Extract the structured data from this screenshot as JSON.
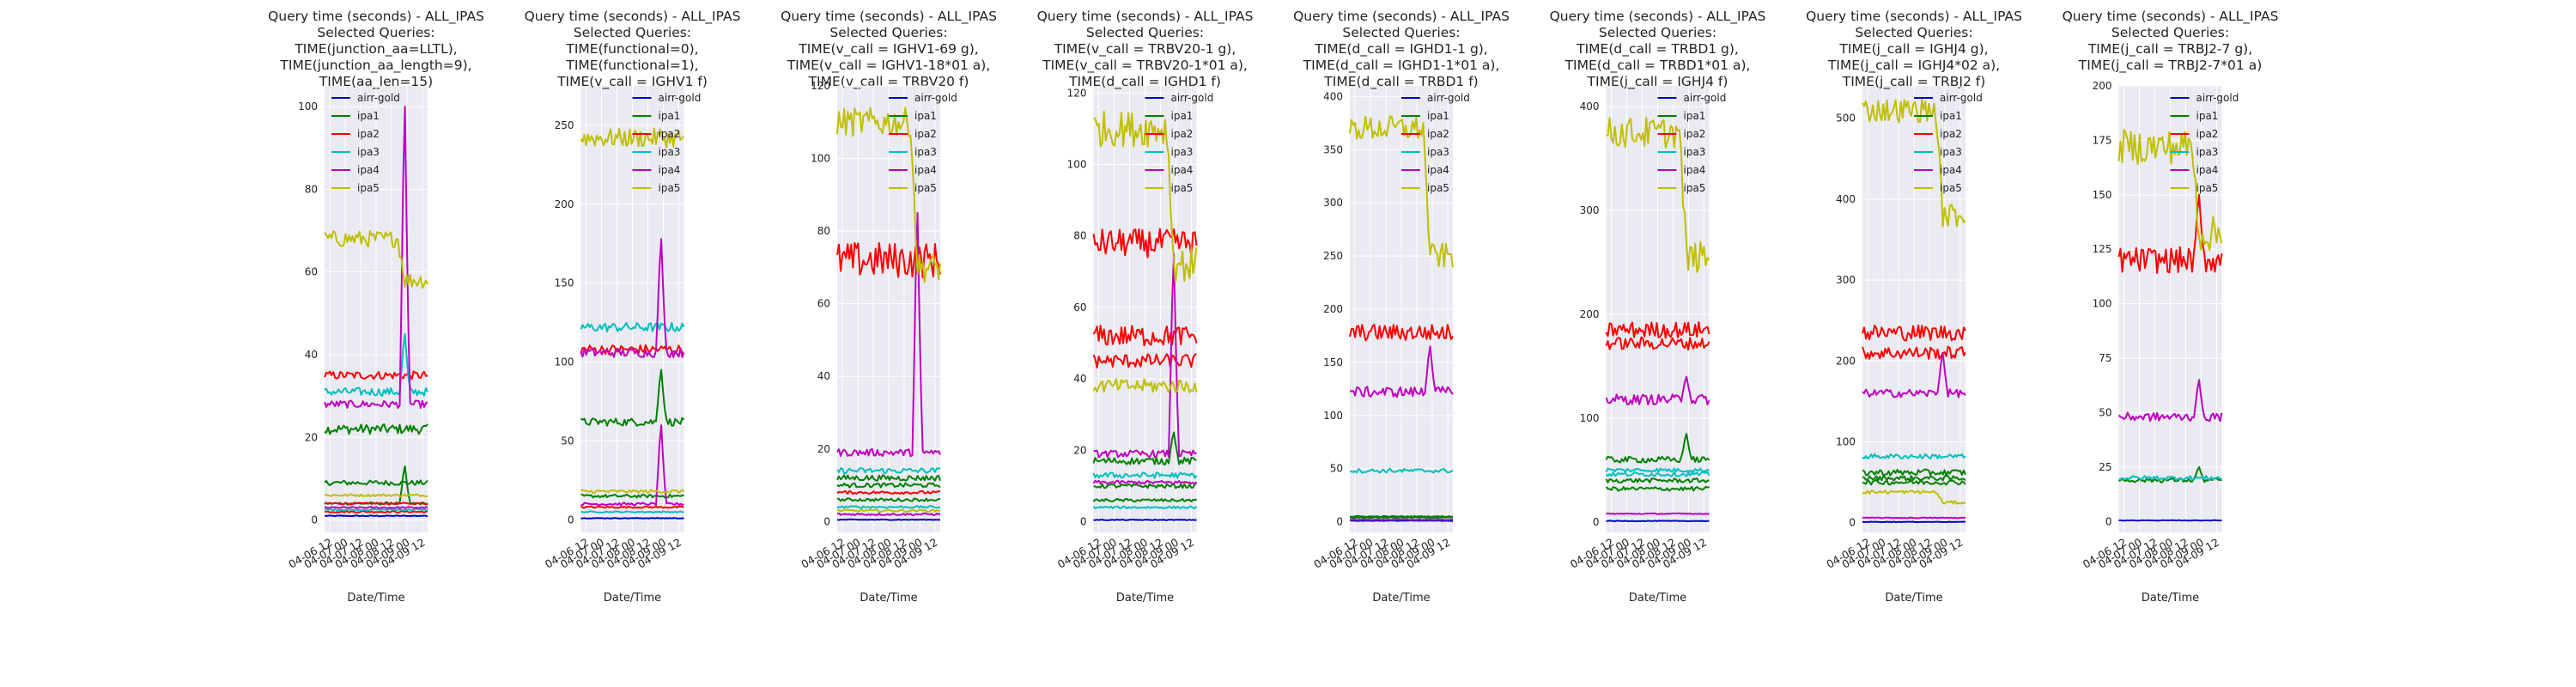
{
  "colors": {
    "airr-gold": "#0000cc",
    "ipa1": "#008000",
    "ipa2": "#ff0000",
    "ipa3": "#00bfbf",
    "ipa4": "#bf00bf",
    "ipa5": "#bfbf00",
    "plot_bg": "#eaeaf2",
    "grid": "#ffffff"
  },
  "legend_labels": [
    "airr-gold",
    "ipa1",
    "ipa2",
    "ipa3",
    "ipa4",
    "ipa5"
  ],
  "chart_data": [
    {
      "type": "line",
      "title": [
        "Query time (seconds) - ALL_IPAS",
        "Selected Queries:",
        "TIME(junction_aa=LLTL),",
        "TIME(junction_aa_length=9),",
        "TIME(aa_len=15)"
      ],
      "xlabel": "Date/Time",
      "x_ticks": [
        "04-06 12",
        "04-07 00",
        "04-07 12",
        "04-08 00",
        "04-08 12",
        "04-09 00",
        "04-09 12"
      ],
      "ylim": [
        -3,
        105
      ],
      "y_ticks": [
        0,
        20,
        40,
        60,
        80,
        100
      ],
      "legend_position": "top-left",
      "series_profiles": [
        {
          "name": "airr-gold",
          "lines": [
            {
              "base": 1,
              "noise": 0.1
            }
          ]
        },
        {
          "name": "ipa1",
          "lines": [
            {
              "base": 22,
              "noise": 1.2
            },
            {
              "base": 9,
              "noise": 0.6
            },
            {
              "base": 4,
              "noise": 0.3,
              "spike": 13
            }
          ]
        },
        {
          "name": "ipa2",
          "lines": [
            {
              "base": 35,
              "noise": 1.0
            },
            {
              "base": 4,
              "noise": 0.2
            },
            {
              "base": 2,
              "noise": 0.2
            }
          ]
        },
        {
          "name": "ipa3",
          "lines": [
            {
              "base": 31,
              "noise": 1.0,
              "spike": 45
            },
            {
              "base": 2.5,
              "noise": 0.2
            }
          ]
        },
        {
          "name": "ipa4",
          "lines": [
            {
              "base": 28,
              "noise": 0.9,
              "spike": 100
            },
            {
              "base": 3,
              "noise": 0.2
            }
          ]
        },
        {
          "name": "ipa5",
          "lines": [
            {
              "base": 68,
              "noise": 2.0,
              "drop": 58
            },
            {
              "base": 6,
              "noise": 0.3
            }
          ]
        }
      ]
    },
    {
      "type": "line",
      "title": [
        "Query time (seconds) - ALL_IPAS",
        "Selected Queries:",
        "TIME(functional=0),",
        "TIME(functional=1),",
        "TIME(v_call = IGHV1 f)"
      ],
      "xlabel": "Date/Time",
      "x_ticks": [
        "04-06 12",
        "04-07 00",
        "04-07 12",
        "04-08 00",
        "04-08 12",
        "04-09 00",
        "04-09 12"
      ],
      "ylim": [
        -8,
        275
      ],
      "y_ticks": [
        0,
        50,
        100,
        150,
        200,
        250
      ],
      "legend_position": "top-right",
      "series_profiles": [
        {
          "name": "airr-gold",
          "lines": [
            {
              "base": 1,
              "noise": 0.2
            }
          ]
        },
        {
          "name": "ipa1",
          "lines": [
            {
              "base": 62,
              "noise": 2.5,
              "spike": 95
            },
            {
              "base": 15,
              "noise": 1
            }
          ]
        },
        {
          "name": "ipa2",
          "lines": [
            {
              "base": 108,
              "noise": 3
            },
            {
              "base": 8,
              "noise": 0.5
            }
          ]
        },
        {
          "name": "ipa3",
          "lines": [
            {
              "base": 122,
              "noise": 3
            },
            {
              "base": 5,
              "noise": 0.4
            }
          ]
        },
        {
          "name": "ipa4",
          "lines": [
            {
              "base": 106,
              "noise": 3,
              "spike": 178
            },
            {
              "base": 10,
              "noise": 0.8,
              "spike": 60
            }
          ]
        },
        {
          "name": "ipa5",
          "lines": [
            {
              "base": 242,
              "noise": 6
            },
            {
              "base": 18,
              "noise": 1
            }
          ]
        }
      ]
    },
    {
      "type": "line",
      "title": [
        "Query time (seconds) - ALL_IPAS",
        "Selected Queries:",
        "TIME(v_call = IGHV1-69 g),",
        "TIME(v_call = IGHV1-18*01 a),",
        "TIME(v_call = TRBV20 f)"
      ],
      "xlabel": "Date/Time",
      "x_ticks": [
        "04-06 12",
        "04-07 00",
        "04-07 12",
        "04-08 00",
        "04-08 12",
        "04-09 00",
        "04-09 12"
      ],
      "ylim": [
        -3,
        120
      ],
      "y_ticks": [
        0,
        20,
        40,
        60,
        80,
        100,
        120
      ],
      "legend_position": "top-right",
      "series_profiles": [
        {
          "name": "airr-gold",
          "lines": [
            {
              "base": 0.5,
              "noise": 0.1
            }
          ]
        },
        {
          "name": "ipa1",
          "lines": [
            {
              "base": 12,
              "noise": 0.8
            },
            {
              "base": 10,
              "noise": 0.6
            },
            {
              "base": 6,
              "noise": 0.4
            }
          ]
        },
        {
          "name": "ipa2",
          "lines": [
            {
              "base": 72,
              "noise": 5
            },
            {
              "base": 8,
              "noise": 0.4
            }
          ]
        },
        {
          "name": "ipa3",
          "lines": [
            {
              "base": 14,
              "noise": 0.8
            },
            {
              "base": 4,
              "noise": 0.3
            }
          ]
        },
        {
          "name": "ipa4",
          "lines": [
            {
              "base": 19,
              "noise": 1,
              "spike": 85
            },
            {
              "base": 2,
              "noise": 0.3
            }
          ]
        },
        {
          "name": "ipa5",
          "lines": [
            {
              "base": 110,
              "noise": 4,
              "drop": 70
            },
            {
              "base": 3,
              "noise": 0.3
            }
          ]
        }
      ]
    },
    {
      "type": "line",
      "title": [
        "Query time (seconds) - ALL_IPAS",
        "Selected Queries:",
        "TIME(v_call = TRBV20-1 g),",
        "TIME(v_call = TRBV20-1*01  a),",
        "TIME(d_call = IGHD1 f)"
      ],
      "xlabel": "Date/Time",
      "x_ticks": [
        "04-06 12",
        "04-07 00",
        "04-07 12",
        "04-08 00",
        "04-08 12",
        "04-09 00",
        "04-09 12"
      ],
      "ylim": [
        -3,
        122
      ],
      "y_ticks": [
        0,
        20,
        40,
        60,
        80,
        100,
        120
      ],
      "legend_position": "top-right",
      "series_profiles": [
        {
          "name": "airr-gold",
          "lines": [
            {
              "base": 0.5,
              "noise": 0.1
            }
          ]
        },
        {
          "name": "ipa1",
          "lines": [
            {
              "base": 17,
              "noise": 1,
              "spike": 25
            },
            {
              "base": 10,
              "noise": 0.6
            },
            {
              "base": 6,
              "noise": 0.4
            }
          ]
        },
        {
          "name": "ipa2",
          "lines": [
            {
              "base": 78,
              "noise": 4
            },
            {
              "base": 52,
              "noise": 3
            },
            {
              "base": 45,
              "noise": 2
            }
          ]
        },
        {
          "name": "ipa3",
          "lines": [
            {
              "base": 13,
              "noise": 0.8
            },
            {
              "base": 4,
              "noise": 0.3
            }
          ]
        },
        {
          "name": "ipa4",
          "lines": [
            {
              "base": 19,
              "noise": 1,
              "spike": 75
            },
            {
              "base": 11,
              "noise": 0.5
            }
          ]
        },
        {
          "name": "ipa5",
          "lines": [
            {
              "base": 110,
              "noise": 5,
              "drop": 72
            },
            {
              "base": 38,
              "noise": 2
            }
          ]
        }
      ]
    },
    {
      "type": "line",
      "title": [
        "Query time (seconds) - ALL_IPAS",
        "Selected Queries:",
        "TIME(d_call = IGHD1-1 g),",
        "TIME(d_call = IGHD1-1*01 a),",
        "TIME(d_call = TRBD1 f)"
      ],
      "xlabel": "Date/Time",
      "x_ticks": [
        "04-06 12",
        "04-07 00",
        "04-07 12",
        "04-08 00",
        "04-08 12",
        "04-09 00",
        "04-09 12"
      ],
      "ylim": [
        -10,
        410
      ],
      "y_ticks": [
        0,
        50,
        100,
        150,
        200,
        250,
        300,
        350,
        400
      ],
      "legend_position": "top-right",
      "series_profiles": [
        {
          "name": "airr-gold",
          "lines": [
            {
              "base": 1,
              "noise": 0.3
            }
          ]
        },
        {
          "name": "ipa1",
          "lines": [
            {
              "base": 5,
              "noise": 0.5
            },
            {
              "base": 4,
              "noise": 0.4
            }
          ]
        },
        {
          "name": "ipa2",
          "lines": [
            {
              "base": 178,
              "noise": 8
            }
          ]
        },
        {
          "name": "ipa3",
          "lines": [
            {
              "base": 48,
              "noise": 2
            }
          ]
        },
        {
          "name": "ipa4",
          "lines": [
            {
              "base": 122,
              "noise": 5,
              "spike": 165
            },
            {
              "base": 2,
              "noise": 0.3
            }
          ]
        },
        {
          "name": "ipa5",
          "lines": [
            {
              "base": 370,
              "noise": 12,
              "drop": 250
            }
          ]
        }
      ]
    },
    {
      "type": "line",
      "title": [
        "Query time (seconds) - ALL_IPAS",
        "Selected Queries:",
        "TIME(d_call = TRBD1 g),",
        "TIME(d_call = TRBD1*01 a),",
        "TIME(j_call = IGHJ4 f)"
      ],
      "xlabel": "Date/Time",
      "x_ticks": [
        "04-06 12",
        "04-07 00",
        "04-07 12",
        "04-08 00",
        "04-08 12",
        "04-09 00",
        "04-09 12"
      ],
      "ylim": [
        -10,
        420
      ],
      "y_ticks": [
        0,
        100,
        200,
        300,
        400
      ],
      "legend_position": "top-right",
      "series_profiles": [
        {
          "name": "airr-gold",
          "lines": [
            {
              "base": 1,
              "noise": 0.3
            }
          ]
        },
        {
          "name": "ipa1",
          "lines": [
            {
              "base": 60,
              "noise": 3,
              "spike": 85
            },
            {
              "base": 40,
              "noise": 2
            },
            {
              "base": 32,
              "noise": 2
            }
          ]
        },
        {
          "name": "ipa2",
          "lines": [
            {
              "base": 185,
              "noise": 8
            },
            {
              "base": 172,
              "noise": 6
            }
          ]
        },
        {
          "name": "ipa3",
          "lines": [
            {
              "base": 50,
              "noise": 2
            },
            {
              "base": 46,
              "noise": 2
            }
          ]
        },
        {
          "name": "ipa4",
          "lines": [
            {
              "base": 118,
              "noise": 5,
              "spike": 140
            },
            {
              "base": 8,
              "noise": 0.5
            }
          ]
        },
        {
          "name": "ipa5",
          "lines": [
            {
              "base": 375,
              "noise": 15,
              "drop": 255
            }
          ]
        }
      ]
    },
    {
      "type": "line",
      "title": [
        "Query time (seconds) - ALL_IPAS",
        "Selected Queries:",
        "TIME(j_call = IGHJ4 g),",
        "TIME(j_call = IGHJ4*02 a),",
        "TIME(j_call = TRBJ2 f)"
      ],
      "xlabel": "Date/Time",
      "x_ticks": [
        "04-06 12",
        "04-07 00",
        "04-07 12",
        "04-08 00",
        "04-08 12",
        "04-09 00",
        "04-09 12"
      ],
      "ylim": [
        -12,
        540
      ],
      "y_ticks": [
        0,
        100,
        200,
        300,
        400,
        500
      ],
      "legend_position": "top-right",
      "series_profiles": [
        {
          "name": "airr-gold",
          "lines": [
            {
              "base": 1,
              "noise": 0.3
            }
          ]
        },
        {
          "name": "ipa1",
          "lines": [
            {
              "base": 62,
              "noise": 4
            },
            {
              "base": 55,
              "noise": 3
            },
            {
              "base": 50,
              "noise": 3
            }
          ]
        },
        {
          "name": "ipa2",
          "lines": [
            {
              "base": 235,
              "noise": 10
            },
            {
              "base": 210,
              "noise": 8
            }
          ]
        },
        {
          "name": "ipa3",
          "lines": [
            {
              "base": 82,
              "noise": 3
            }
          ]
        },
        {
          "name": "ipa4",
          "lines": [
            {
              "base": 160,
              "noise": 5,
              "spike": 210
            },
            {
              "base": 6,
              "noise": 0.5
            }
          ]
        },
        {
          "name": "ipa5",
          "lines": [
            {
              "base": 510,
              "noise": 15,
              "drop": 380
            },
            {
              "base": 38,
              "noise": 2,
              "drop": 25
            }
          ]
        }
      ]
    },
    {
      "type": "line",
      "title": [
        "Query time (seconds) - ALL_IPAS",
        "Selected Queries:",
        "TIME(j_call = TRBJ2-7 g),",
        "TIME(j_call = TRBJ2-7*01 a)"
      ],
      "xlabel": "Date/Time",
      "x_ticks": [
        "04-06 12",
        "04-07 00",
        "04-07 12",
        "04-08 00",
        "04-08 12",
        "04-09 00",
        "04-09 12"
      ],
      "ylim": [
        -5,
        200
      ],
      "y_ticks": [
        0,
        25,
        50,
        75,
        100,
        125,
        150,
        175,
        200
      ],
      "legend_position": "top-right",
      "series_profiles": [
        {
          "name": "airr-gold",
          "lines": [
            {
              "base": 0.5,
              "noise": 0.1
            }
          ]
        },
        {
          "name": "ipa1",
          "lines": [
            {
              "base": 19,
              "noise": 1,
              "spike": 25
            }
          ]
        },
        {
          "name": "ipa2",
          "lines": [
            {
              "base": 120,
              "noise": 6,
              "spike": 150
            }
          ]
        },
        {
          "name": "ipa3",
          "lines": [
            {
              "base": 20,
              "noise": 1
            }
          ]
        },
        {
          "name": "ipa4",
          "lines": [
            {
              "base": 48,
              "noise": 2,
              "spike": 65
            }
          ]
        },
        {
          "name": "ipa5",
          "lines": [
            {
              "base": 172,
              "noise": 8,
              "drop": 132
            }
          ]
        }
      ]
    }
  ]
}
